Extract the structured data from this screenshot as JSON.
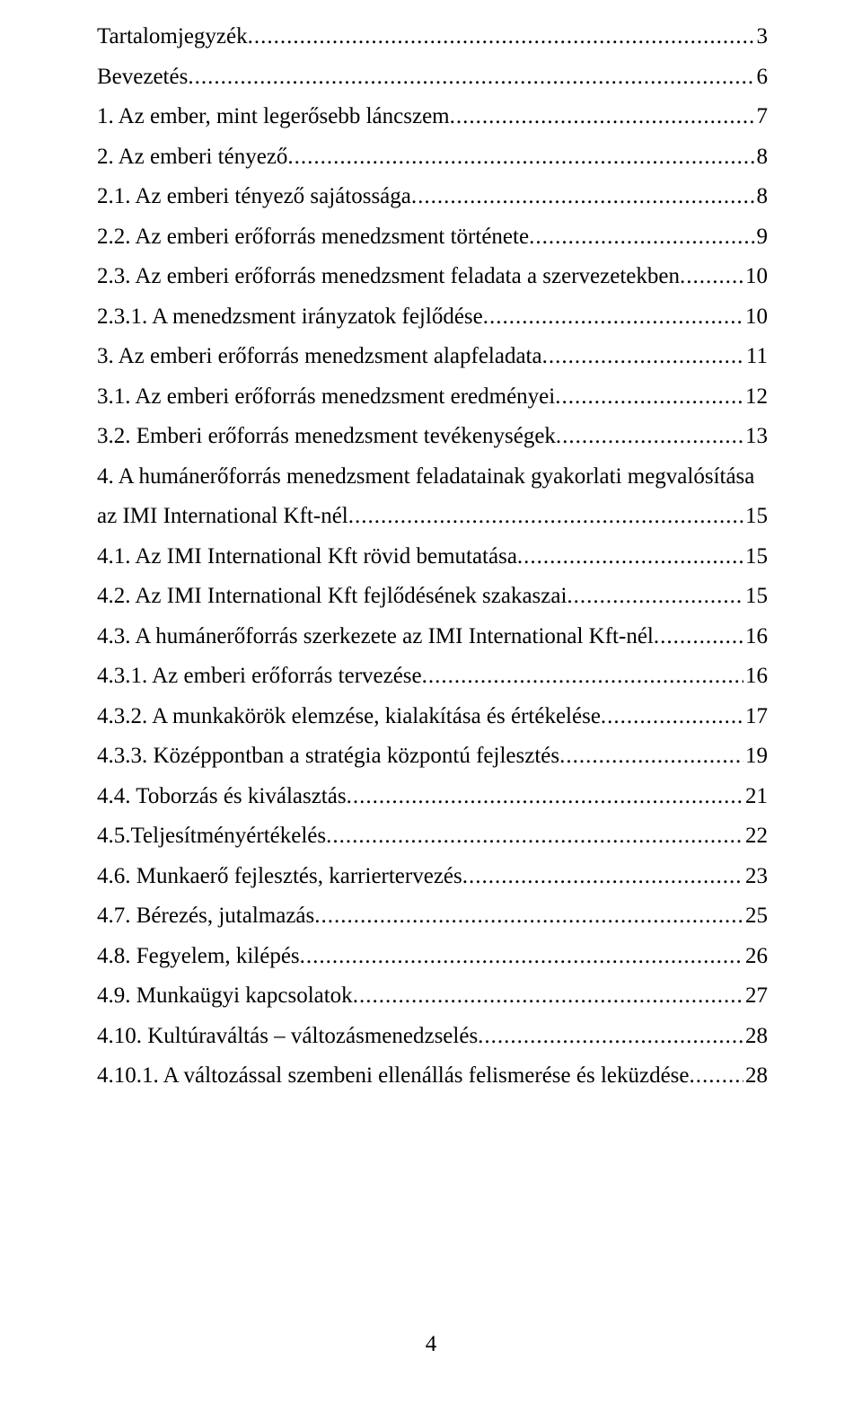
{
  "page_number": "4",
  "toc": [
    {
      "title": "Tartalomjegyzék",
      "page": "3"
    },
    {
      "title": "Bevezetés",
      "page": "6"
    },
    {
      "title": "1. Az ember, mint legerősebb láncszem",
      "page": "7"
    },
    {
      "title": "2. Az emberi tényező",
      "page": "8"
    },
    {
      "title": "2.1. Az emberi tényező sajátossága",
      "page": "8"
    },
    {
      "title": "2.2. Az emberi erőforrás menedzsment története",
      "page": "9"
    },
    {
      "title": "2.3. Az emberi erőforrás menedzsment feladata a szervezetekben",
      "page": "10"
    },
    {
      "title": "2.3.1. A menedzsment irányzatok fejlődése",
      "page": "10"
    },
    {
      "title": "3. Az emberi erőforrás menedzsment alapfeladata",
      "page": "11"
    },
    {
      "title": "3.1. Az emberi erőforrás menedzsment eredményei",
      "page": "12"
    },
    {
      "title": "3.2. Emberi erőforrás menedzsment tevékenységek",
      "page": "13"
    },
    {
      "title_line1": "4. A humánerőforrás menedzsment feladatainak gyakorlati megvalósítása",
      "title_line2": "az IMI International Kft-nél",
      "page": "15",
      "wrap": true
    },
    {
      "title": "4.1. Az IMI International Kft rövid bemutatása",
      "page": "15"
    },
    {
      "title": "4.2. Az IMI International Kft fejlődésének szakaszai",
      "page": "15"
    },
    {
      "title": "4.3. A humánerőforrás szerkezete az IMI International Kft-nél",
      "page": "16"
    },
    {
      "title": "4.3.1. Az emberi erőforrás tervezése",
      "page": "16"
    },
    {
      "title": "4.3.2. A munkakörök elemzése, kialakítása és értékelése",
      "page": "17"
    },
    {
      "title": "4.3.3. Középpontban a stratégia központú fejlesztés",
      "page": "19"
    },
    {
      "title": "4.4. Toborzás és kiválasztás",
      "page": "21"
    },
    {
      "title": "4.5.Teljesítményértékelés",
      "page": "22"
    },
    {
      "title": "4.6. Munkaerő fejlesztés, karriertervezés",
      "page": "23"
    },
    {
      "title": "4.7. Bérezés, jutalmazás",
      "page": "25"
    },
    {
      "title": "4.8. Fegyelem, kilépés",
      "page": "26"
    },
    {
      "title": "4.9. Munkaügyi kapcsolatok",
      "page": "27"
    },
    {
      "title": "4.10. Kultúraváltás – változásmenedzselés",
      "page": "28"
    },
    {
      "title": "4.10.1. A változással szembeni ellenállás felismerése és leküzdése",
      "page": "28"
    }
  ]
}
